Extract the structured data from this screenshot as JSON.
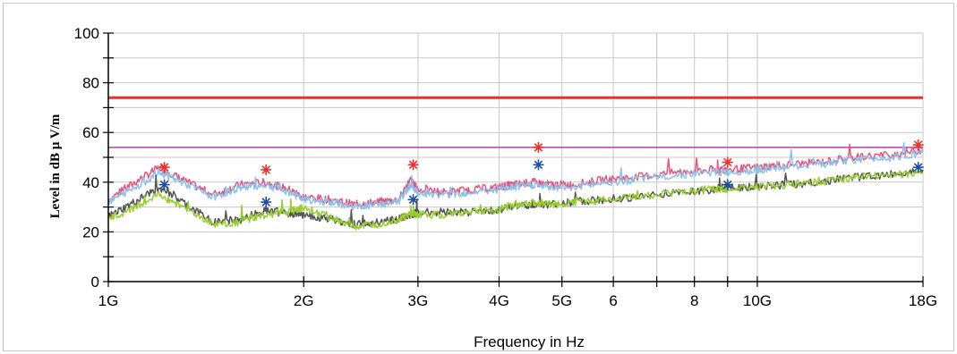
{
  "chart_data": {
    "type": "line",
    "xlabel": "Frequency in Hz",
    "ylabel": "Level in dB µ V/m",
    "x_scale": "log",
    "xlim_hz": [
      1000000000,
      18000000000
    ],
    "ylim": [
      0,
      100
    ],
    "y_ticks": [
      0,
      20,
      40,
      60,
      80,
      100
    ],
    "x_ticks": [
      {
        "hz": 1000000000,
        "label": "1G"
      },
      {
        "hz": 2000000000,
        "label": "2G"
      },
      {
        "hz": 3000000000,
        "label": "3G"
      },
      {
        "hz": 4000000000,
        "label": "4G"
      },
      {
        "hz": 5000000000,
        "label": "5G"
      },
      {
        "hz": 6000000000,
        "label": "6"
      },
      {
        "hz": 8000000000,
        "label": "8"
      },
      {
        "hz": 10000000000,
        "label": "10G"
      },
      {
        "hz": 18000000000,
        "label": "18G"
      }
    ],
    "grid": true,
    "limit_lines": [
      {
        "value": 74,
        "color": "#e8312f"
      },
      {
        "value": 54,
        "color": "#c23aa8"
      }
    ],
    "series": [
      {
        "color": "#e8547c",
        "x": [
          1.0,
          1.1,
          1.2,
          1.3,
          1.45,
          1.6,
          1.75,
          1.9,
          2.0,
          2.2,
          2.4,
          2.6,
          2.8,
          2.92,
          3.0,
          3.3,
          3.6,
          4.0,
          4.2,
          4.5,
          4.8,
          5.2,
          5.8,
          6.5,
          7.5,
          8.5,
          9.0,
          10.0,
          11.0,
          12.5,
          14.0,
          16.0,
          18.0
        ],
        "y": [
          33,
          40,
          46,
          41,
          35,
          39,
          40,
          37,
          34,
          33,
          31,
          32,
          33,
          41,
          37,
          36,
          37,
          38,
          39,
          40,
          39,
          39,
          41,
          42,
          44,
          45,
          45,
          46,
          47,
          48,
          50,
          51,
          53
        ]
      },
      {
        "color": "#8ec1e8",
        "x": [
          1.0,
          1.1,
          1.2,
          1.3,
          1.45,
          1.6,
          1.75,
          1.9,
          2.0,
          2.2,
          2.4,
          2.6,
          2.8,
          2.92,
          3.0,
          3.3,
          3.6,
          4.0,
          4.2,
          4.5,
          4.8,
          5.2,
          5.8,
          6.5,
          7.5,
          8.5,
          9.0,
          10.0,
          11.0,
          12.5,
          14.0,
          16.0,
          18.0
        ],
        "y": [
          32,
          38,
          44,
          40,
          34,
          38,
          39,
          36,
          33,
          32,
          30,
          31,
          32,
          39,
          36,
          35,
          36,
          37,
          38,
          39,
          38,
          38,
          40,
          41,
          43,
          44,
          44,
          45,
          46,
          47,
          49,
          50,
          52
        ]
      },
      {
        "color": "#555555",
        "x": [
          1.0,
          1.1,
          1.2,
          1.3,
          1.45,
          1.6,
          1.75,
          1.9,
          2.0,
          2.2,
          2.4,
          2.6,
          2.8,
          2.92,
          3.0,
          3.3,
          3.6,
          4.0,
          4.2,
          4.5,
          4.8,
          5.2,
          5.8,
          6.5,
          7.5,
          8.5,
          9.0,
          10.0,
          11.0,
          12.5,
          14.0,
          16.0,
          18.0
        ],
        "y": [
          26,
          32,
          38,
          32,
          24,
          25,
          29,
          27,
          27,
          25,
          23,
          24,
          25,
          27,
          28,
          28,
          28,
          29,
          30,
          31,
          31,
          32,
          33,
          34,
          36,
          37,
          38,
          38,
          39,
          40,
          42,
          43,
          45
        ]
      },
      {
        "color": "#9acd32",
        "x": [
          1.0,
          1.1,
          1.2,
          1.3,
          1.45,
          1.6,
          1.75,
          1.9,
          2.0,
          2.2,
          2.4,
          2.6,
          2.8,
          2.92,
          3.0,
          3.3,
          3.6,
          4.0,
          4.2,
          4.5,
          4.8,
          5.2,
          5.8,
          6.5,
          7.5,
          8.5,
          9.0,
          10.0,
          11.0,
          12.5,
          14.0,
          16.0,
          18.0
        ],
        "y": [
          25,
          30,
          35,
          30,
          23,
          24,
          27,
          28,
          30,
          26,
          22,
          23,
          25,
          27,
          27,
          27,
          28,
          29,
          31,
          32,
          31,
          32,
          33,
          34,
          36,
          37,
          37,
          38,
          39,
          40,
          42,
          43,
          44
        ]
      }
    ],
    "peak_markers": [
      {
        "x": 1.22,
        "y": 46,
        "color": "#e8312f"
      },
      {
        "x": 1.75,
        "y": 45,
        "color": "#e8312f"
      },
      {
        "x": 2.95,
        "y": 47,
        "color": "#e8312f"
      },
      {
        "x": 4.6,
        "y": 54,
        "color": "#e8312f"
      },
      {
        "x": 9.0,
        "y": 48,
        "color": "#e8312f"
      },
      {
        "x": 17.7,
        "y": 55,
        "color": "#e8312f"
      }
    ],
    "avg_markers": [
      {
        "x": 1.22,
        "y": 39,
        "color": "#1f4fa0"
      },
      {
        "x": 1.75,
        "y": 32,
        "color": "#1f4fa0"
      },
      {
        "x": 2.95,
        "y": 33,
        "color": "#1f4fa0"
      },
      {
        "x": 4.6,
        "y": 47,
        "color": "#1f4fa0"
      },
      {
        "x": 9.0,
        "y": 39,
        "color": "#1f4fa0"
      },
      {
        "x": 17.7,
        "y": 46,
        "color": "#1f4fa0"
      }
    ]
  }
}
